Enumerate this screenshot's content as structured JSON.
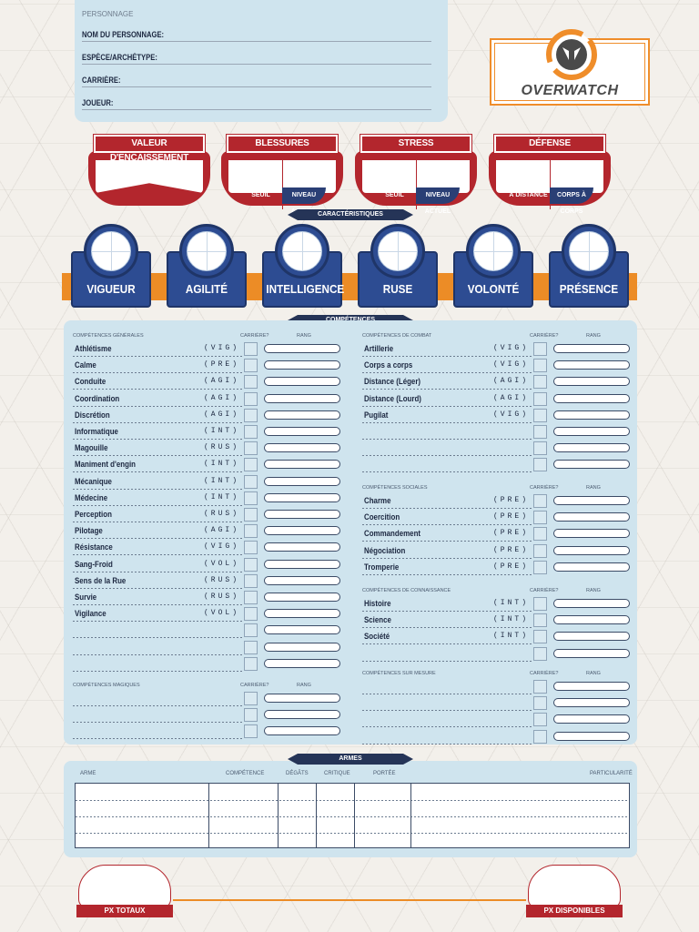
{
  "character": {
    "section": "PERSONNAGE",
    "fields": [
      "NOM DU PERSONNAGE:",
      "ESPÈCE/ARCHÉTYPE:",
      "CARRIÈRE:",
      "JOUEUR:"
    ]
  },
  "logo": {
    "word": "OVERWATCH"
  },
  "stats": {
    "soak": {
      "title": "VALEUR D'ENCAISSEMENT"
    },
    "wounds": {
      "title": "BLESSURES",
      "left": "SEUIL",
      "right": "NIVEAU ACTUEL"
    },
    "stress": {
      "title": "STRESS",
      "left": "SEUIL",
      "right": "NIVEAU ACTUEL"
    },
    "defense": {
      "title": "DÉFENSE",
      "left": "À DISTANCE",
      "right": "CORPS À CORPS"
    }
  },
  "banners": {
    "characteristics": "CARACTÉRISTIQUES",
    "skills": "COMPÉTENCES",
    "weapons": "ARMES"
  },
  "characteristics": [
    "VIGUEUR",
    "AGILITÉ",
    "INTELLIGENCE",
    "RUSE",
    "VOLONTÉ",
    "PRÉSENCE"
  ],
  "labels": {
    "career": "CARRIÈRE?",
    "rank": "RANG"
  },
  "skills": {
    "general": {
      "title": "COMPÉTENCES GÉNÉRALES",
      "items": [
        {
          "name": "Athlétisme",
          "char": "(VIG)"
        },
        {
          "name": "Calme",
          "char": "(PRE)"
        },
        {
          "name": "Conduite",
          "char": "(AGI)"
        },
        {
          "name": "Coordination",
          "char": "(AGI)"
        },
        {
          "name": "Discrétion",
          "char": "(AGI)"
        },
        {
          "name": "Informatique",
          "char": "(INT)"
        },
        {
          "name": "Magouille",
          "char": "(RUS)"
        },
        {
          "name": "Maniment d'engin",
          "char": "(INT)"
        },
        {
          "name": "Mécanique",
          "char": "(INT)"
        },
        {
          "name": "Médecine",
          "char": "(INT)"
        },
        {
          "name": "Perception",
          "char": "(RUS)"
        },
        {
          "name": "Pilotage",
          "char": "(AGI)"
        },
        {
          "name": "Résistance",
          "char": "(VIG)"
        },
        {
          "name": "Sang-Froid",
          "char": "(VOL)"
        },
        {
          "name": "Sens de la Rue",
          "char": "(RUS)"
        },
        {
          "name": "Survie",
          "char": "(RUS)"
        },
        {
          "name": "Vigilance",
          "char": "(VOL)"
        },
        {
          "name": "",
          "char": ""
        },
        {
          "name": "",
          "char": ""
        },
        {
          "name": "",
          "char": ""
        }
      ]
    },
    "magic": {
      "title": "COMPÉTENCES MAGIQUES",
      "items": [
        {
          "name": "",
          "char": ""
        },
        {
          "name": "",
          "char": ""
        },
        {
          "name": "",
          "char": ""
        }
      ]
    },
    "combat": {
      "title": "COMPÉTENCES DE COMBAT",
      "items": [
        {
          "name": "Artillerie",
          "char": "(VIG)"
        },
        {
          "name": "Corps a corps",
          "char": "(VIG)"
        },
        {
          "name": "Distance (Léger)",
          "char": "(AGI)"
        },
        {
          "name": "Distance (Lourd)",
          "char": "(AGI)"
        },
        {
          "name": "Pugilat",
          "char": "(VIG)"
        },
        {
          "name": "",
          "char": ""
        },
        {
          "name": "",
          "char": ""
        },
        {
          "name": "",
          "char": ""
        }
      ]
    },
    "social": {
      "title": "COMPÉTENCES SOCIALES",
      "items": [
        {
          "name": "Charme",
          "char": "(PRE)"
        },
        {
          "name": "Coercition",
          "char": "(PRE)"
        },
        {
          "name": "Commandement",
          "char": "(PRE)"
        },
        {
          "name": "Négociation",
          "char": "(PRE)"
        },
        {
          "name": "Tromperie",
          "char": "(PRE)"
        }
      ]
    },
    "knowledge": {
      "title": "COMPÉTENCES DE CONNAISSANCE",
      "items": [
        {
          "name": "Histoire",
          "char": "(INT)"
        },
        {
          "name": "Science",
          "char": "(INT)"
        },
        {
          "name": "Société",
          "char": "(INT)"
        },
        {
          "name": "",
          "char": ""
        }
      ]
    },
    "custom": {
      "title": "COMPÉTENCES SUR MESURE",
      "items": [
        {
          "name": "",
          "char": ""
        },
        {
          "name": "",
          "char": ""
        },
        {
          "name": "",
          "char": ""
        },
        {
          "name": "",
          "char": ""
        }
      ]
    }
  },
  "weapons": {
    "headers": [
      "ARME",
      "COMPÉTENCE",
      "DÉGÂTS",
      "CRITIQUE",
      "PORTÉE",
      "PARTICULARITÉ"
    ]
  },
  "xp": {
    "total": "PX TOTAUX",
    "available": "PX DISPONIBLES"
  },
  "colors": {
    "red": "#b3262d",
    "navy": "#253457",
    "blue": "#2d4c92",
    "orange": "#ec8c26",
    "panel": "#cfe4ee"
  }
}
